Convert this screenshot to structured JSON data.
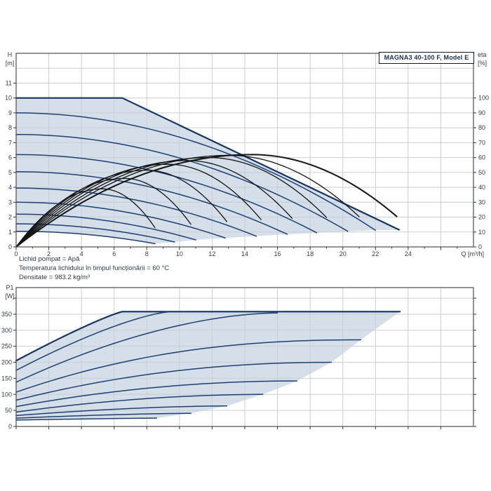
{
  "title_box": {
    "label": "MAGNA3 40-100 F, Model E"
  },
  "notes": {
    "line1": "Lichid pompat = Apă",
    "line2": "Temperatura lichidului în timpul funcționării = 60 °C",
    "line3": "Densitate = 983.2 kg/m³"
  },
  "colors": {
    "fill_region": "#d4dfea",
    "pump_curve": "#1e3f72",
    "boundary_curve": "#17335f",
    "efficiency_curve": "#141414",
    "grid": "#c9ced4",
    "border": "#4a4f55",
    "tick": "#333333",
    "label": "#2f3c49",
    "title_text": "#1a2f52",
    "note_text": "#2e3b49"
  },
  "chart_data": [
    {
      "type": "line",
      "id": "head_chart",
      "title": "MAGNA3 40-100 F, Model E",
      "xlabel": "Q [m³/h]",
      "ylabel_left": [
        "H",
        "[m]"
      ],
      "ylabel_right": [
        "eta",
        "[%]"
      ],
      "xlim": [
        0,
        28
      ],
      "ylim": [
        0,
        13
      ],
      "eta_axis": {
        "lim": [
          0,
          130
        ],
        "labels": [
          0,
          10,
          20,
          30,
          40,
          50,
          60,
          70,
          80,
          90,
          100
        ]
      },
      "x_tick_labels": [
        0,
        2,
        4,
        6,
        8,
        10,
        12,
        14,
        16,
        18,
        20,
        22,
        24
      ],
      "x_grid_step": 2,
      "y_tick_labels_left": [
        0,
        1,
        2,
        3,
        4,
        5,
        6,
        7,
        8,
        9,
        10,
        11
      ],
      "grid": true,
      "legend": "none",
      "max_curve": {
        "shutoff_head_m": 10,
        "flat_until_q": 6.5,
        "end_point": [
          23.45,
          1.15
        ]
      },
      "pump_curves": [
        {
          "h0_m": 9.0,
          "q_end": 22.0,
          "h_end": 1.12
        },
        {
          "h0_m": 7.55,
          "q_end": 20.3,
          "h_end": 1.05
        },
        {
          "h0_m": 6.2,
          "q_end": 18.4,
          "h_end": 0.95
        },
        {
          "h0_m": 5.05,
          "q_end": 16.6,
          "h_end": 0.85
        },
        {
          "h0_m": 3.95,
          "q_end": 14.7,
          "h_end": 0.72
        },
        {
          "h0_m": 3.0,
          "q_end": 12.8,
          "h_end": 0.6
        },
        {
          "h0_m": 2.2,
          "q_end": 11.0,
          "h_end": 0.47
        },
        {
          "h0_m": 1.55,
          "q_end": 9.7,
          "h_end": 0.33
        },
        {
          "h0_m": 1.05,
          "q_end": 8.5,
          "h_end": 0.22
        }
      ],
      "efficiency_curves": [
        {
          "q_end": 8.5,
          "peak_eta_pct": 39
        },
        {
          "q_end": 10.7,
          "peak_eta_pct": 46
        },
        {
          "q_end": 12.9,
          "peak_eta_pct": 51.5
        },
        {
          "q_end": 15.0,
          "peak_eta_pct": 55.5
        },
        {
          "q_end": 16.9,
          "peak_eta_pct": 58
        },
        {
          "q_end": 19.0,
          "peak_eta_pct": 60
        },
        {
          "q_end": 21.0,
          "peak_eta_pct": 61.5
        },
        {
          "q_end": 23.3,
          "peak_eta_pct": 62
        }
      ],
      "efficiency_peak_position": 0.62,
      "efficiency_end_factor": 0.33
    },
    {
      "type": "line",
      "id": "power_chart",
      "xlabel": "",
      "ylabel_left": [
        "P1",
        "[W]"
      ],
      "xlim": [
        0,
        28
      ],
      "ylim": [
        0,
        433
      ],
      "x_grid_step": 2,
      "y_grid_step": 50,
      "y_tick_labels_left": [
        0,
        50,
        100,
        150,
        200,
        250,
        300,
        350
      ],
      "grid": true,
      "max_power_w": 358,
      "power_curves": [
        {
          "p0_w": 205,
          "q_end": 6.5,
          "p_end": 358,
          "shape": 1.15,
          "flat_to_q": 23.5
        },
        {
          "p0_w": 175,
          "q_end": 9.3,
          "p_end": 357,
          "shape": 1.35
        },
        {
          "p0_w": 138,
          "q_end": 16.0,
          "p_end": 354,
          "shape": 1.75
        },
        {
          "p0_w": 107,
          "q_end": 21.1,
          "p_end": 270,
          "shape": 2.3
        },
        {
          "p0_w": 82,
          "q_end": 19.3,
          "p_end": 200,
          "shape": 2.1
        },
        {
          "p0_w": 62,
          "q_end": 17.2,
          "p_end": 142,
          "shape": 2.0
        },
        {
          "p0_w": 45,
          "q_end": 15.1,
          "p_end": 100,
          "shape": 1.9
        },
        {
          "p0_w": 34,
          "q_end": 12.9,
          "p_end": 64,
          "shape": 1.7
        },
        {
          "p0_w": 26,
          "q_end": 10.7,
          "p_end": 41,
          "shape": 1.5
        },
        {
          "p0_w": 20,
          "q_end": 8.6,
          "p_end": 26,
          "shape": 1.3
        }
      ]
    }
  ]
}
